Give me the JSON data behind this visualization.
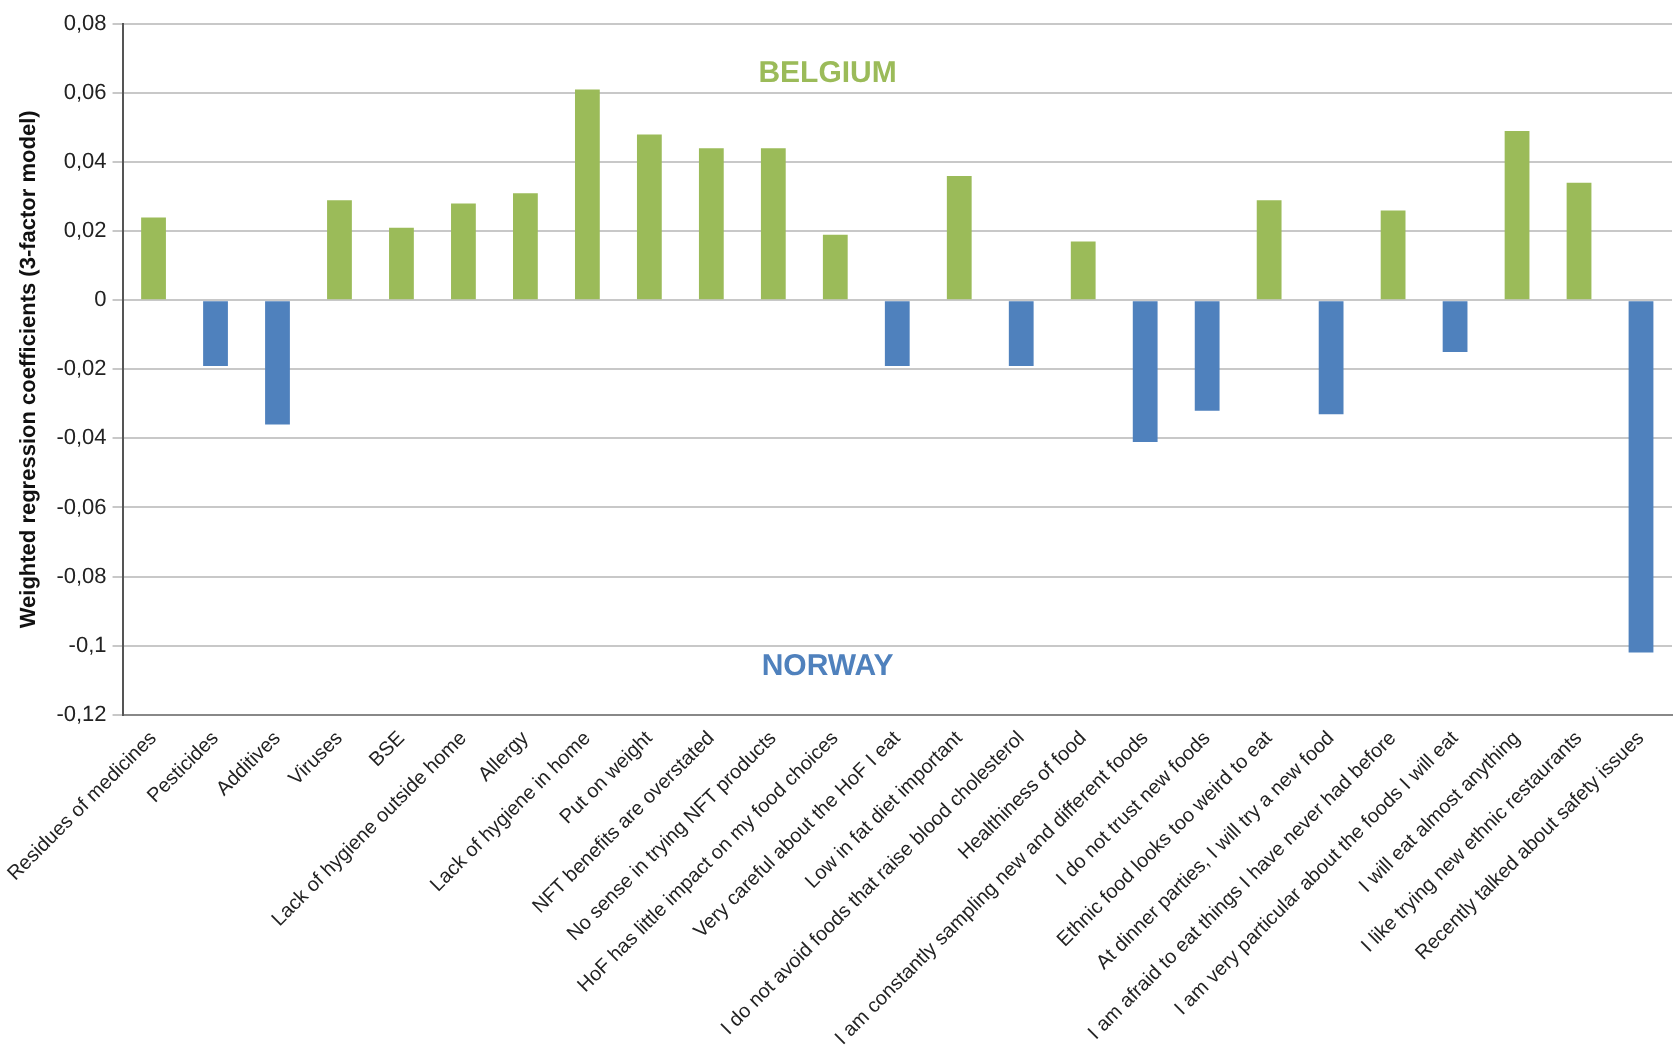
{
  "chart_data": {
    "type": "bar",
    "ylabel": "Weighted regression coefficients (3-factor model)",
    "categories": [
      "Residues of medicines",
      "Pesticides",
      "Additives",
      "Viruses",
      "BSE",
      "Lack of hygiene outside home",
      "Allergy",
      "Lack of hygiene in home",
      "Put on weight",
      "NFT benefits are overstated",
      "No sense in trying NFT products",
      "HoF has little impact on my food choices",
      "Very careful about the HoF I eat",
      "Low in fat diet important",
      "I do not avoid foods that raise blood cholesterol",
      "Healthiness of food",
      "I am constantly sampling new and different foods",
      "I do not trust new foods",
      "Ethnic food looks too weird to eat",
      "At dinner parties, I will try a new food",
      "I am afraid to eat things I have never had before",
      "I am very particular about the foods I will eat",
      "I will eat almost anything",
      "I like trying new ethnic restaurants",
      "Recently talked about safety issues"
    ],
    "values": [
      0.024,
      -0.019,
      -0.036,
      0.029,
      0.021,
      0.028,
      0.031,
      0.061,
      0.048,
      0.044,
      0.044,
      0.019,
      -0.019,
      0.036,
      -0.019,
      0.017,
      -0.041,
      -0.032,
      0.029,
      -0.033,
      0.026,
      -0.015,
      0.049,
      0.034,
      -0.102
    ],
    "colors": [
      "#9bbb59",
      "#4f81bd",
      "#4f81bd",
      "#9bbb59",
      "#9bbb59",
      "#9bbb59",
      "#9bbb59",
      "#9bbb59",
      "#9bbb59",
      "#9bbb59",
      "#9bbb59",
      "#9bbb59",
      "#4f81bd",
      "#9bbb59",
      "#4f81bd",
      "#9bbb59",
      "#4f81bd",
      "#4f81bd",
      "#9bbb59",
      "#4f81bd",
      "#9bbb59",
      "#4f81bd",
      "#9bbb59",
      "#9bbb59",
      "#4f81bd"
    ],
    "ylim": [
      -0.12,
      0.08
    ],
    "yticks": [
      {
        "value": 0.08,
        "label": "0,08"
      },
      {
        "value": 0.06,
        "label": "0,06"
      },
      {
        "value": 0.04,
        "label": "0,04"
      },
      {
        "value": 0.02,
        "label": "0,02"
      },
      0,
      {
        "value": -0.02,
        "label": "-0,02"
      },
      {
        "value": -0.04,
        "label": "-0,04"
      },
      {
        "value": -0.06,
        "label": "-0,06"
      },
      {
        "value": -0.08,
        "label": "-0,08"
      },
      {
        "value": -0.1,
        "label": "-0,1"
      },
      {
        "value": -0.12,
        "label": "-0,12"
      }
    ],
    "grid": "y",
    "legend": false,
    "annotations": [
      "BELGIUM",
      "NORWAY"
    ]
  }
}
